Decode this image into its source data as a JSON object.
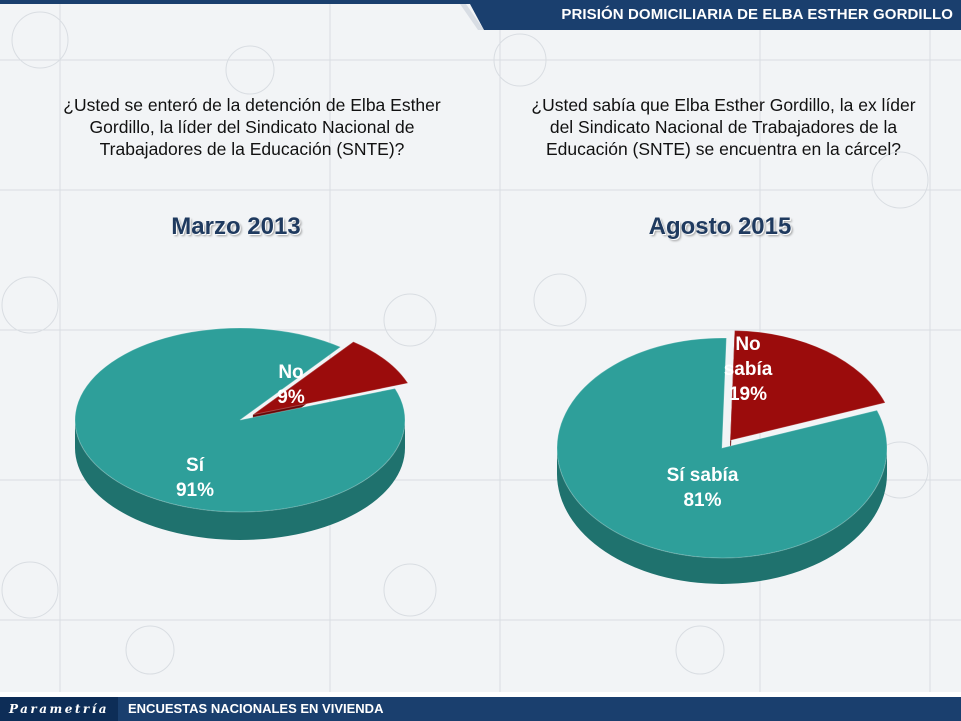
{
  "header": {
    "title": "PRISIÓN DOMICILIARIA DE ELBA ESTHER GORDILLO"
  },
  "footer": {
    "logo": "Parametría",
    "text": "ENCUESTAS NACIONALES EN VIVIENDA"
  },
  "colors": {
    "teal": "#2e9f9a",
    "teal_dark": "#1f726e",
    "red": "#9b0c0c",
    "red_dark": "#6a0606",
    "header_blue": "#1a3f6e"
  },
  "chart_data": [
    {
      "type": "pie",
      "question": "¿Usted se enteró de la detención de Elba Esther Gordillo, la líder del Sindicato Nacional de Trabajadores de la Educación (SNTE)?",
      "title": "Marzo 2013",
      "categories": [
        "Sí",
        "No"
      ],
      "values": [
        91,
        9
      ],
      "value_labels": [
        "91%",
        "9%"
      ],
      "colors": [
        "#2e9f9a",
        "#9b0c0c"
      ]
    },
    {
      "type": "pie",
      "question": "¿Usted sabía que Elba Esther Gordillo, la ex líder del Sindicato Nacional de Trabajadores de la Educación (SNTE) se encuentra en la cárcel?",
      "title": "Agosto 2015",
      "categories": [
        "Sí sabía",
        "No sabía"
      ],
      "values": [
        81,
        19
      ],
      "value_labels": [
        "81%",
        "19%"
      ],
      "colors": [
        "#2e9f9a",
        "#9b0c0c"
      ]
    }
  ]
}
